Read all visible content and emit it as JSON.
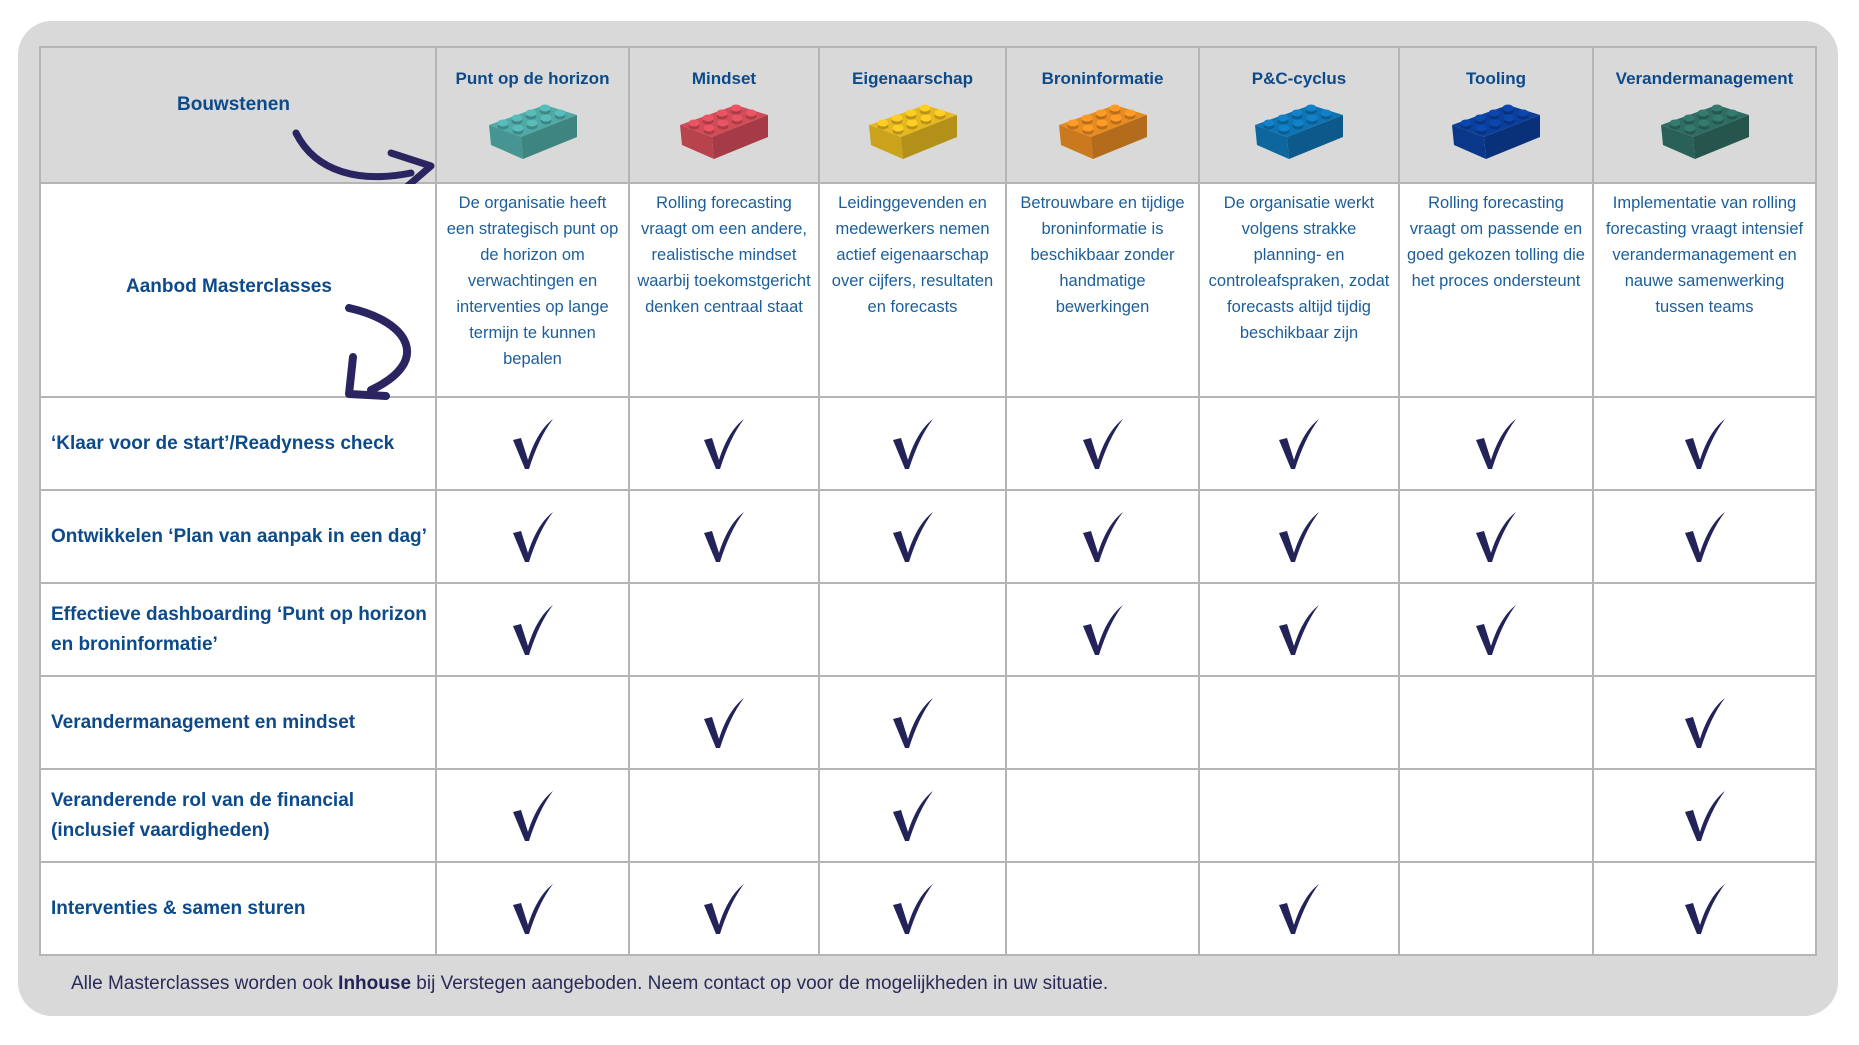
{
  "header": {
    "corner_label": "Bouwstenen",
    "offer_label": "Aanbod Masterclasses"
  },
  "columns": [
    {
      "title": "Punt op de horizon",
      "color": "#4fa9a6",
      "desc": "De organisatie heeft een strategisch punt op de horizon om verwachtingen en interventies op lange termijn te kunnen bepalen"
    },
    {
      "title": "Mindset",
      "color": "#d24c58",
      "desc": "Rolling forecasting vraagt om een andere, realistische mindset waarbij toekomstgericht denken centraal staat"
    },
    {
      "title": "Eigenaarschap",
      "color": "#e6b820",
      "desc": "Leidinggevenden en medewerkers nemen actief eigenaarschap over cijfers, resultaten en forecasts"
    },
    {
      "title": "Broninformatie",
      "color": "#e68a22",
      "desc": "Betrouwbare en tijdige broninformatie is beschikbaar zonder handmatige bewerkingen"
    },
    {
      "title": "P&C-cyclus",
      "color": "#0f74b4",
      "desc": "De organisatie werkt volgens strakke planning- en controleafspraken, zodat forecasts altijd tijdig beschikbaar zijn"
    },
    {
      "title": "Tooling",
      "color": "#0b3f9c",
      "desc": "Rolling forecasting vraagt om passende en goed gekozen tolling die het proces ondersteunt"
    },
    {
      "title": "Verandermanagement",
      "color": "#2f6d63",
      "desc": "Implementatie van rolling forecasting vraagt intensief verandermanagement en nauwe samenwerking tussen teams"
    }
  ],
  "rows": [
    {
      "label": "‘Klaar voor de start’/Readyness check",
      "checks": [
        1,
        1,
        1,
        1,
        1,
        1,
        1
      ]
    },
    {
      "label": "Ontwikkelen ‘Plan van aanpak in een dag’",
      "checks": [
        1,
        1,
        1,
        1,
        1,
        1,
        1
      ]
    },
    {
      "label": "Effectieve dashboarding ‘Punt op horizon en broninformatie’",
      "checks": [
        1,
        0,
        0,
        1,
        1,
        1,
        0
      ]
    },
    {
      "label": "Verandermanagement en mindset",
      "checks": [
        0,
        1,
        1,
        0,
        0,
        0,
        1
      ]
    },
    {
      "label": "Veranderende rol van de financial (inclusief vaardigheden)",
      "checks": [
        1,
        0,
        1,
        0,
        0,
        0,
        1
      ]
    },
    {
      "label": "Interventies & samen sturen",
      "checks": [
        1,
        1,
        1,
        0,
        1,
        0,
        1
      ]
    }
  ],
  "footer": {
    "before": "Alle Masterclasses worden ook ",
    "bold": "Inhouse",
    "after": " bij Verstegen aangeboden. Neem contact op voor de mogelijkheden in uw situatie."
  },
  "check_color": "#23235a"
}
